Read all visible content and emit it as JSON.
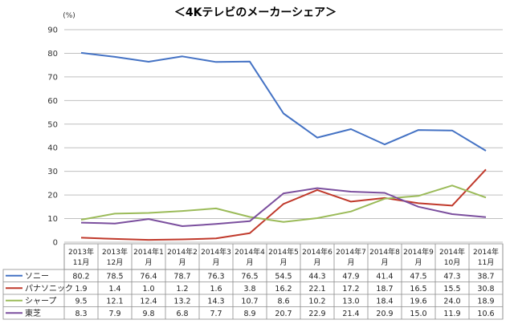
{
  "chart_data": {
    "type": "line",
    "title": "＜4Kテレビのメーカーシェア＞",
    "unit": "(%)",
    "ylim": [
      0,
      90
    ],
    "yticks": [
      0,
      10,
      20,
      30,
      40,
      50,
      60,
      70,
      80,
      90
    ],
    "grid": true,
    "legend": "table-left",
    "categories": [
      [
        "2013年",
        "11月"
      ],
      [
        "2013年",
        "12月"
      ],
      [
        "2014年1",
        "月"
      ],
      [
        "2014年2",
        "月"
      ],
      [
        "2014年3",
        "月"
      ],
      [
        "2014年4",
        "月"
      ],
      [
        "2014年5",
        "月"
      ],
      [
        "2014年6",
        "月"
      ],
      [
        "2014年7",
        "月"
      ],
      [
        "2014年8",
        "月"
      ],
      [
        "2014年9",
        "月"
      ],
      [
        "2014年",
        "10月"
      ],
      [
        "2014年",
        "11月"
      ]
    ],
    "series": [
      {
        "name": "ソニー",
        "color": "#4472c4",
        "values": [
          80.2,
          78.5,
          76.4,
          78.7,
          76.3,
          76.5,
          54.5,
          44.3,
          47.9,
          41.4,
          47.5,
          47.3,
          38.7
        ]
      },
      {
        "name": "パナソニック",
        "color": "#c0392b",
        "values": [
          1.9,
          1.4,
          1.0,
          1.2,
          1.6,
          3.8,
          16.2,
          22.1,
          17.2,
          18.7,
          16.5,
          15.5,
          30.8
        ]
      },
      {
        "name": "シャープ",
        "color": "#9bbb59",
        "values": [
          9.5,
          12.1,
          12.4,
          13.2,
          14.3,
          10.7,
          8.6,
          10.2,
          13.0,
          18.4,
          19.6,
          24.0,
          18.9
        ]
      },
      {
        "name": "東芝",
        "color": "#7b4f9e",
        "values": [
          8.3,
          7.9,
          9.8,
          6.8,
          7.7,
          8.9,
          20.7,
          22.9,
          21.4,
          20.9,
          15.0,
          11.9,
          10.6
        ]
      }
    ]
  }
}
